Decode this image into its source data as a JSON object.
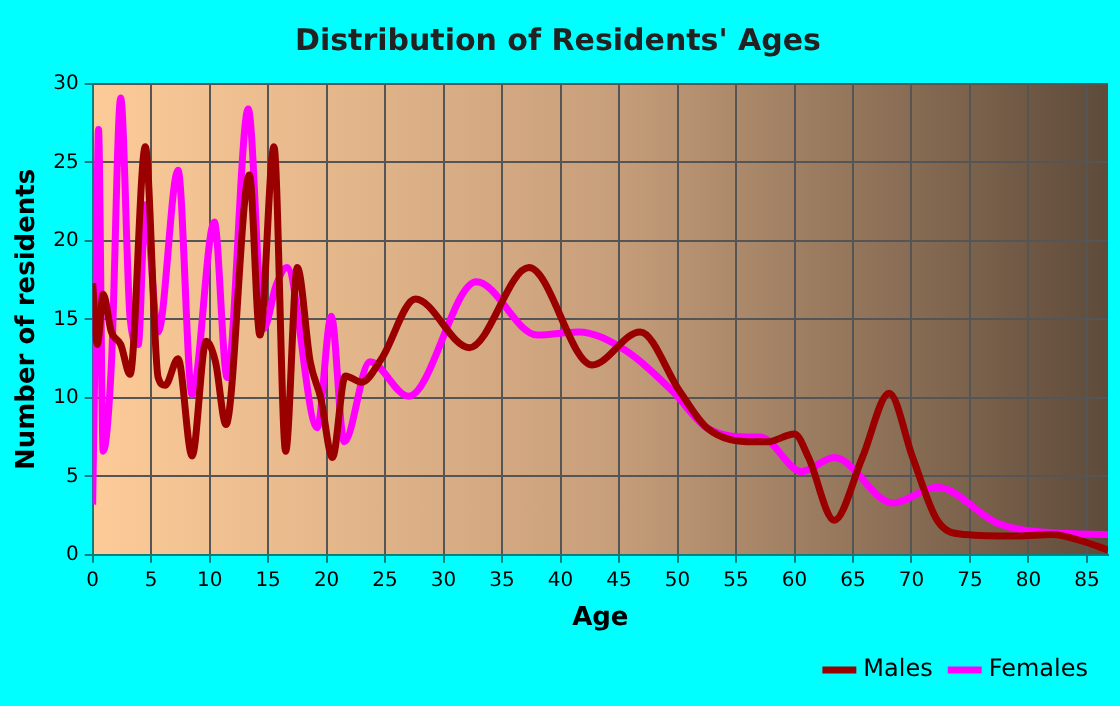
{
  "chart_data": {
    "type": "line",
    "title": "Distribution of Residents' Ages",
    "xlabel": "Age",
    "ylabel": "Number of residents",
    "xlim": [
      0,
      86.8
    ],
    "xticks": [
      0,
      5,
      10,
      15,
      20,
      25,
      30,
      35,
      40,
      45,
      50,
      55,
      60,
      65,
      70,
      75,
      80,
      85
    ],
    "ylim": [
      0,
      30
    ],
    "yticks": [
      0,
      5,
      10,
      15,
      20,
      25,
      30
    ],
    "grid": true,
    "legend": "bottom right",
    "marker": "none",
    "line_style": "solid",
    "series": [
      {
        "name": "Males",
        "color": "#9b0000",
        "x": [
          0,
          0.4,
          0.9,
          1.6,
          2.4,
          3.2,
          4.5,
          5.6,
          6.2,
          7.3,
          8.5,
          9.7,
          10.5,
          11.4,
          13.4,
          14.3,
          15.5,
          16.5,
          17.5,
          18.6,
          19.5,
          20.5,
          21.6,
          23,
          24.7,
          27.6,
          32.2,
          37.3,
          42.7,
          46.8,
          50.2,
          52.5,
          56.5,
          57.7,
          60,
          61.2,
          63.4,
          65.8,
          68.1,
          70.1,
          72.2,
          74.5,
          79.1,
          82,
          84.9,
          86.8
        ],
        "values": [
          17.3,
          13.4,
          16.6,
          14.2,
          13.4,
          11.5,
          26,
          11.3,
          10.8,
          12.5,
          6.3,
          13.6,
          12.3,
          8.3,
          24.2,
          14,
          26,
          6.6,
          18.3,
          12.3,
          10,
          6.2,
          11.4,
          11,
          12.5,
          16.3,
          13.2,
          18.3,
          12.1,
          14.2,
          10.4,
          8.1,
          7.2,
          7.2,
          7.7,
          6.2,
          2.2,
          6.2,
          10.3,
          6.2,
          2.2,
          1.3,
          1.2,
          1.3,
          0.8,
          0.3
        ]
      },
      {
        "name": "Females",
        "color": "#ff00ff",
        "x": [
          0,
          0.3,
          0.5,
          0.9,
          1.6,
          2.4,
          3.2,
          3.9,
          4.5,
          5.6,
          7.3,
          8.5,
          10.4,
          11.5,
          13.3,
          14.6,
          15.7,
          16.6,
          19.2,
          20.4,
          21.5,
          23.7,
          27,
          32.8,
          38,
          41.5,
          45.6,
          49.6,
          52.5,
          56.5,
          57.1,
          60.6,
          63.4,
          68.4,
          72.2,
          77.4,
          82,
          86.8
        ],
        "values": [
          3.2,
          17.6,
          27.1,
          6.6,
          12.1,
          29.1,
          15.1,
          13.4,
          22.3,
          14.2,
          24.5,
          10.2,
          21.2,
          11.3,
          28.4,
          14.4,
          17.2,
          18.3,
          8.1,
          15.2,
          7.2,
          12.3,
          10.1,
          17.4,
          14,
          14.2,
          13,
          10.4,
          8.1,
          7.5,
          7.5,
          5.3,
          6.2,
          3.3,
          4.3,
          2,
          1.4,
          1.3
        ]
      }
    ]
  }
}
